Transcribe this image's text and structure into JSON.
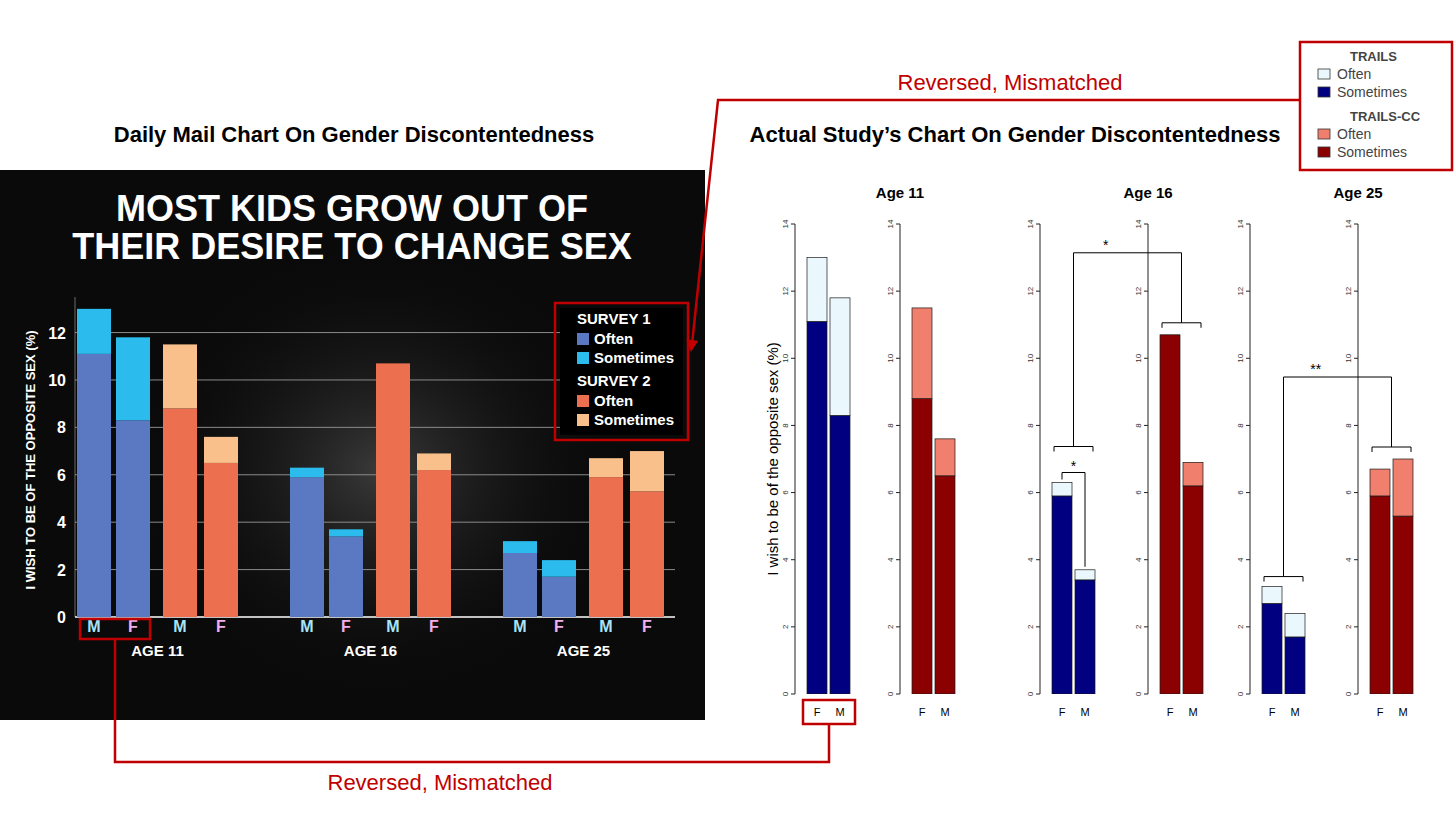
{
  "annotations": [
    "Reversed, Mismatched",
    "Reversed, Mismatched"
  ],
  "chart_data": [
    {
      "type": "bar",
      "stacked": true,
      "grid": true,
      "legend": "top-right",
      "heading": "Daily Mail Chart On Gender Discontentedness",
      "title": "MOST KIDS GROW OUT OF THEIR DESIRE TO CHANGE SEX",
      "y_label": "I WISH TO BE OF THE OPPOSITE SEX (%)",
      "categories": [
        "M",
        "F",
        "M",
        "F",
        "M",
        "F",
        "M",
        "F",
        "M",
        "F",
        "M",
        "F"
      ],
      "groups": [
        "AGE 11",
        "AGE 16",
        "AGE 25"
      ],
      "series": [
        {
          "name": "Often",
          "group": "SURVEY 1",
          "color": "#5b78c2",
          "values": [
            11.1,
            8.3,
            null,
            null,
            5.9,
            3.4,
            null,
            null,
            2.7,
            1.7,
            null,
            null
          ]
        },
        {
          "name": "Sometimes",
          "group": "SURVEY 1",
          "color": "#2bbbec",
          "values": [
            1.9,
            3.5,
            null,
            null,
            0.4,
            0.3,
            null,
            null,
            0.5,
            0.7,
            null,
            null
          ]
        },
        {
          "name": "Often",
          "group": "SURVEY 2",
          "color": "#ec6f4f",
          "values": [
            null,
            null,
            8.8,
            6.5,
            null,
            null,
            10.7,
            6.2,
            null,
            null,
            5.9,
            5.3
          ]
        },
        {
          "name": "Sometimes",
          "group": "SURVEY 2",
          "color": "#f9c08c",
          "values": [
            null,
            null,
            2.7,
            1.1,
            null,
            null,
            0.0,
            0.7,
            null,
            null,
            0.8,
            1.7
          ]
        }
      ],
      "ylim": [
        0,
        13.5
      ],
      "yticks": [
        0,
        2,
        4,
        6,
        8,
        10,
        12
      ]
    },
    {
      "type": "bar",
      "stacked": true,
      "legend": "top-right",
      "heading": "Actual Study’s Chart On Gender Discontentedness",
      "y_label": "I wish to be of the opposite sex (%)",
      "categories": [
        "F",
        "M",
        "F",
        "M",
        "F",
        "M",
        "F",
        "M",
        "F",
        "M",
        "F",
        "M"
      ],
      "groups": [
        "Age 11",
        "Age 16",
        "Age 25"
      ],
      "significance_between": [
        null,
        "*",
        "**"
      ],
      "significance_within": [
        null,
        "*",
        null
      ],
      "series": [
        {
          "name": "Often",
          "group": "TRAILS",
          "color": "#eaf8fd",
          "values": [
            1.9,
            3.5,
            null,
            null,
            0.4,
            0.3,
            null,
            null,
            0.5,
            0.7,
            null,
            null
          ]
        },
        {
          "name": "Sometimes",
          "group": "TRAILS",
          "color": "#000080",
          "values": [
            11.1,
            8.3,
            null,
            null,
            5.9,
            3.4,
            null,
            null,
            2.7,
            1.7,
            null,
            null
          ]
        },
        {
          "name": "Often",
          "group": "TRAILS-CC",
          "color": "#f07f6e",
          "values": [
            null,
            null,
            2.7,
            1.1,
            null,
            null,
            0.0,
            0.7,
            null,
            null,
            0.8,
            1.7
          ]
        },
        {
          "name": "Sometimes",
          "group": "TRAILS-CC",
          "color": "#8b0000",
          "values": [
            null,
            null,
            8.8,
            6.5,
            null,
            null,
            10.7,
            6.2,
            null,
            null,
            5.9,
            5.3
          ]
        }
      ],
      "ylim": [
        0,
        14
      ],
      "yticks": [
        0,
        2,
        4,
        6,
        8,
        10,
        12,
        14
      ]
    }
  ]
}
